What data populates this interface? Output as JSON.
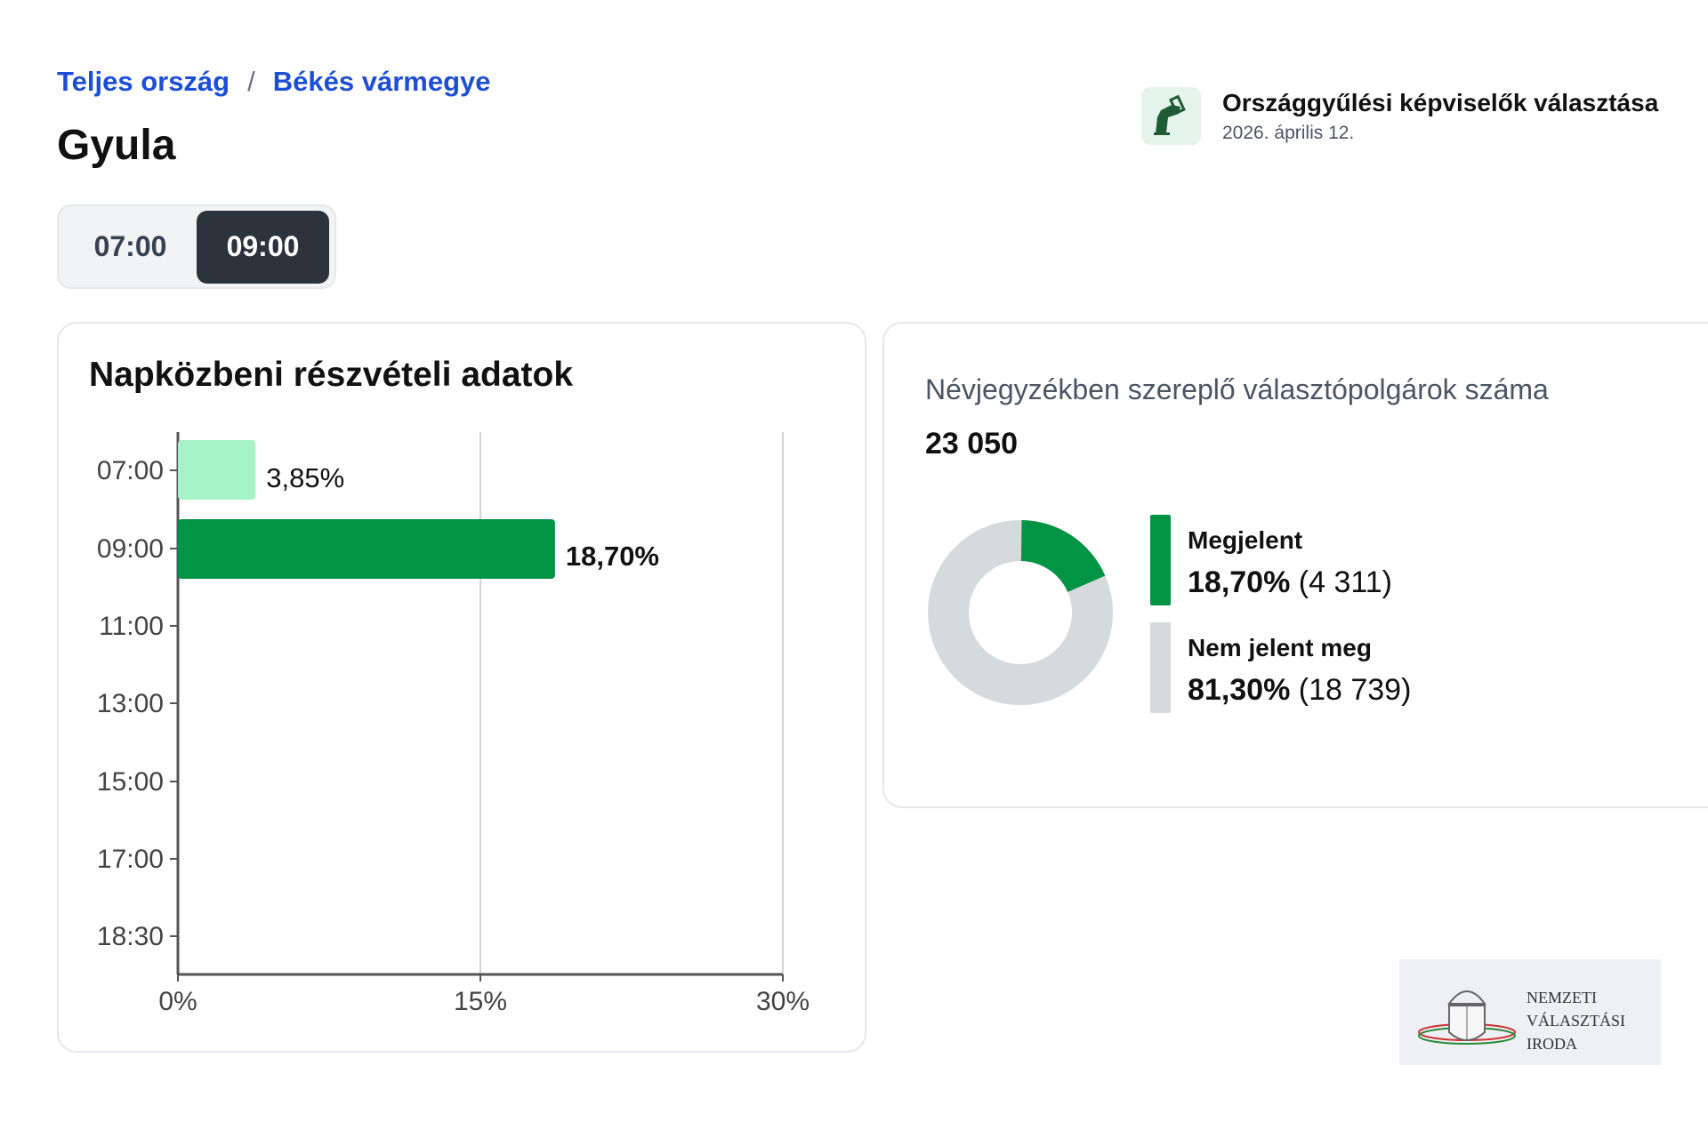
{
  "breadcrumb": {
    "items": [
      "Teljes ország",
      "Békés vármegye"
    ],
    "separator": "/"
  },
  "page_title": "Gyula",
  "time_toggle": {
    "options": [
      "07:00",
      "09:00"
    ],
    "selected": "09:00"
  },
  "election": {
    "icon": "ballot-box-icon",
    "title": "Országgyűlési képviselők választása",
    "date": "2026. április 12."
  },
  "turnout_card": {
    "title": "Napközbeni részvételi adatok"
  },
  "chart_data": {
    "type": "bar",
    "orientation": "horizontal",
    "categories": [
      "07:00",
      "09:00",
      "11:00",
      "13:00",
      "15:00",
      "17:00",
      "18:30"
    ],
    "values": [
      3.85,
      18.7,
      null,
      null,
      null,
      null,
      null
    ],
    "data_labels": [
      "3,85%",
      "18,70%",
      "",
      "",
      "",
      "",
      ""
    ],
    "xticks": [
      "0%",
      "15%",
      "30%"
    ],
    "xlim": [
      0,
      30
    ],
    "grid": true,
    "colors": [
      "#a7f3c8",
      "#009444"
    ]
  },
  "registry_card": {
    "label": "Névjegyzékben szereplő választópolgárok száma",
    "value": "23 050",
    "legend": [
      {
        "name": "Megjelent",
        "percent": "18,70%",
        "count": "(4 311)",
        "share": 18.7,
        "color": "#009444"
      },
      {
        "name": "Nem jelent meg",
        "percent": "81,30%",
        "count": "(18 739)",
        "share": 81.3,
        "color": "#d5dadc"
      }
    ]
  },
  "logo": {
    "lines": [
      "NEMZETI",
      "VÁLASZTÁSI",
      "IRODA"
    ]
  }
}
